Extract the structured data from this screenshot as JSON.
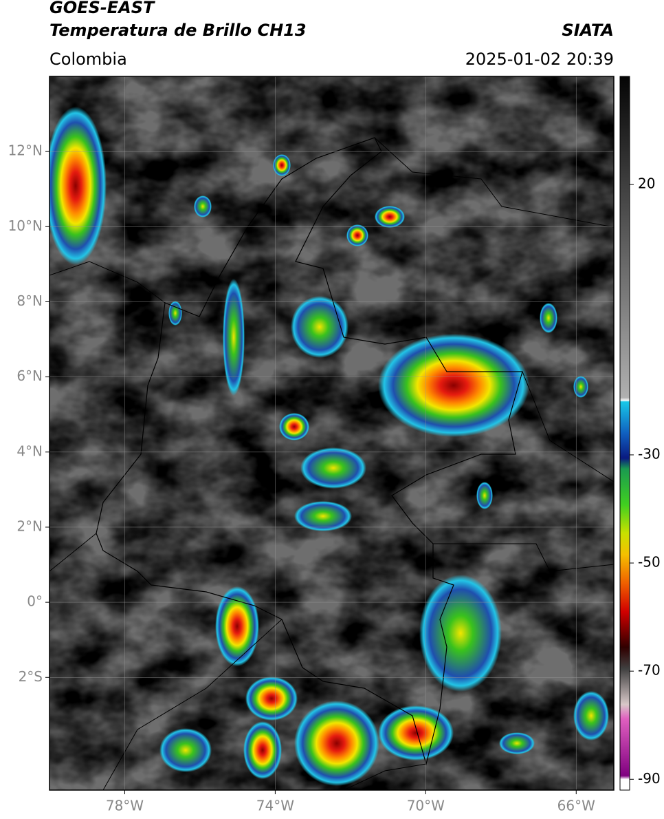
{
  "header": {
    "title": "GOES-EAST",
    "subtitle": "Temperatura de Brillo CH13",
    "region": "Colombia",
    "source": "SIATA",
    "timestamp": "2025-01-02 20:39"
  },
  "map": {
    "xlim": [
      -80,
      -65
    ],
    "ylim": [
      -5,
      14
    ],
    "xticks": [
      {
        "value": -78,
        "label": "78°W"
      },
      {
        "value": -74,
        "label": "74°W"
      },
      {
        "value": -70,
        "label": "70°W"
      },
      {
        "value": -66,
        "label": "66°W"
      }
    ],
    "yticks": [
      {
        "value": 12,
        "label": "12°N"
      },
      {
        "value": 10,
        "label": "10°N"
      },
      {
        "value": 8,
        "label": "8°N"
      },
      {
        "value": 6,
        "label": "6°N"
      },
      {
        "value": 4,
        "label": "4°N"
      },
      {
        "value": 2,
        "label": "2°N"
      },
      {
        "value": 0,
        "label": "0°"
      },
      {
        "value": -2,
        "label": "2°S"
      }
    ],
    "grid": true
  },
  "colorbar": {
    "lim": [
      -92,
      40
    ],
    "ticks": [
      20,
      -30,
      -50,
      -70,
      -90
    ]
  }
}
